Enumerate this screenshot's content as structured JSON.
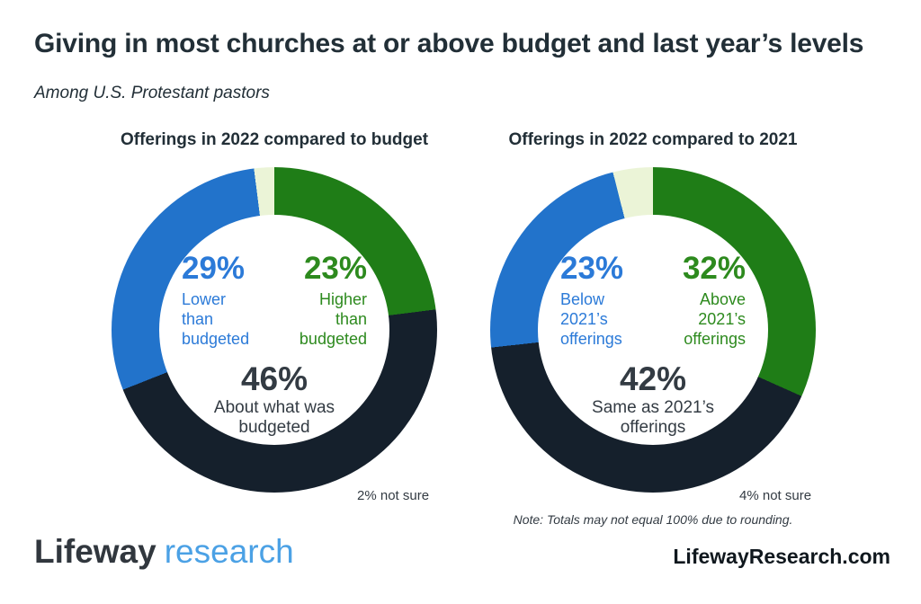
{
  "page": {
    "title": "Giving in most churches at or above budget and last year’s levels",
    "subtitle": "Among U.S. Protestant pastors",
    "rounding_note": "Note: Totals may not equal 100% due to rounding.",
    "brand": {
      "primary": "Lifeway",
      "secondary": "research"
    },
    "website": "LifewayResearch.com"
  },
  "palette": {
    "green": "#1f7d17",
    "dark": "#15202c",
    "blue": "#2273cb",
    "notsure": "#ebf4d7",
    "green_text": "#2d8a1e",
    "blue_text": "#2b7ad8",
    "dark_text": "#333b43",
    "title_text": "#222f37",
    "logo_dark": "#31373e",
    "logo_blue": "#4ba1e5",
    "link_dark": "#10181e"
  },
  "chart_data": [
    {
      "type": "pie",
      "subtype": "donut",
      "title": "Offerings in 2022 compared to budget",
      "slices": [
        {
          "label": "Higher than budgeted",
          "value": 23,
          "pct_label": "23%",
          "lines": [
            "Higher",
            "than",
            "budgeted"
          ],
          "color_key": "green"
        },
        {
          "label": "About what was budgeted",
          "value": 46,
          "pct_label": "46%",
          "lines": [
            "About what was",
            "budgeted"
          ],
          "color_key": "dark"
        },
        {
          "label": "Lower than budgeted",
          "value": 29,
          "pct_label": "29%",
          "lines": [
            "Lower",
            "than",
            "budgeted"
          ],
          "color_key": "blue"
        },
        {
          "label": "Not sure",
          "value": 2,
          "pct_label": "2%",
          "lines": [],
          "color_key": "notsure"
        }
      ],
      "not_sure_note": "2% not sure",
      "start_angle_deg": 0,
      "direction": "clockwise"
    },
    {
      "type": "pie",
      "subtype": "donut",
      "title": "Offerings in 2022 compared to 2021",
      "slices": [
        {
          "label": "Above 2021’s offerings",
          "value": 32,
          "pct_label": "32%",
          "lines": [
            "Above",
            "2021’s",
            "offerings"
          ],
          "color_key": "green"
        },
        {
          "label": "Same as 2021’s offerings",
          "value": 42,
          "pct_label": "42%",
          "lines": [
            "Same as 2021’s",
            "offerings"
          ],
          "color_key": "dark"
        },
        {
          "label": "Below 2021’s offerings",
          "value": 23,
          "pct_label": "23%",
          "lines": [
            "Below",
            "2021’s",
            "offerings"
          ],
          "color_key": "blue"
        },
        {
          "label": "Not sure",
          "value": 4,
          "pct_label": "4%",
          "lines": [],
          "color_key": "notsure"
        }
      ],
      "not_sure_note": "4% not sure",
      "start_angle_deg": 0,
      "direction": "clockwise"
    }
  ]
}
